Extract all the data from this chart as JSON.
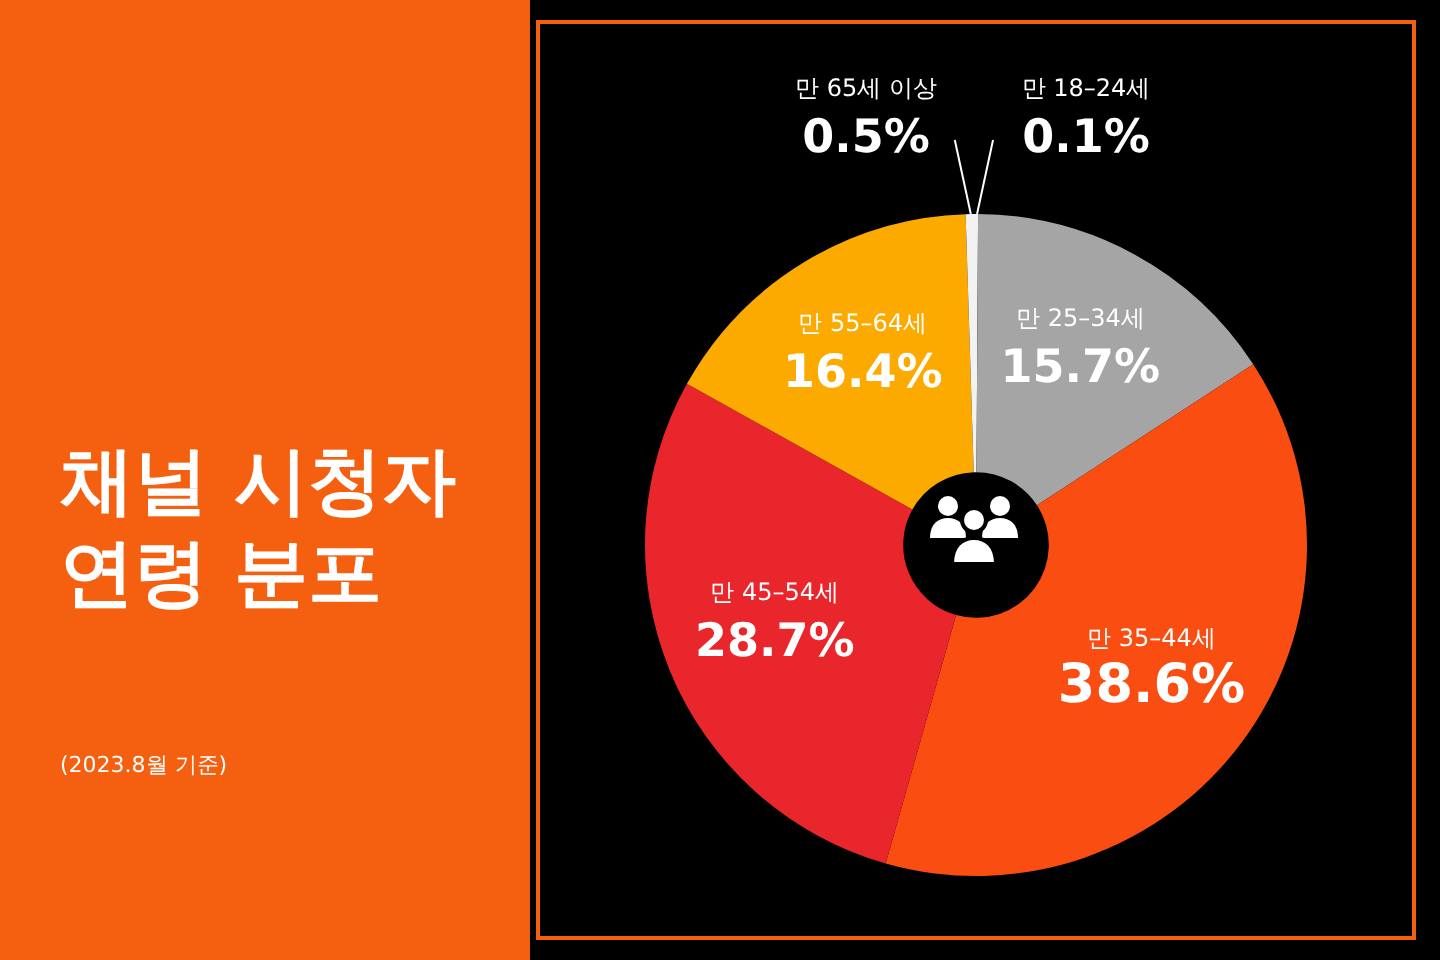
{
  "chart_data": {
    "type": "donut",
    "title": "채널 시청자 연령 분포",
    "subtitle": "(2023.8월 기준)",
    "categories": [
      "만 18–24세",
      "만 25–34세",
      "만 35–44세",
      "만 45–54세",
      "만 55–64세",
      "만 65세 이상"
    ],
    "values": [
      0.1,
      15.7,
      38.6,
      28.7,
      16.4,
      0.5
    ],
    "value_labels": [
      "0.1%",
      "15.7%",
      "38.6%",
      "28.7%",
      "16.4%",
      "0.5%"
    ],
    "colors": [
      "#f2f2f2",
      "#a5a5a5",
      "#fa4d12",
      "#e8262c",
      "#fdaa00",
      "#f2f2f2"
    ],
    "legend": false
  }
}
